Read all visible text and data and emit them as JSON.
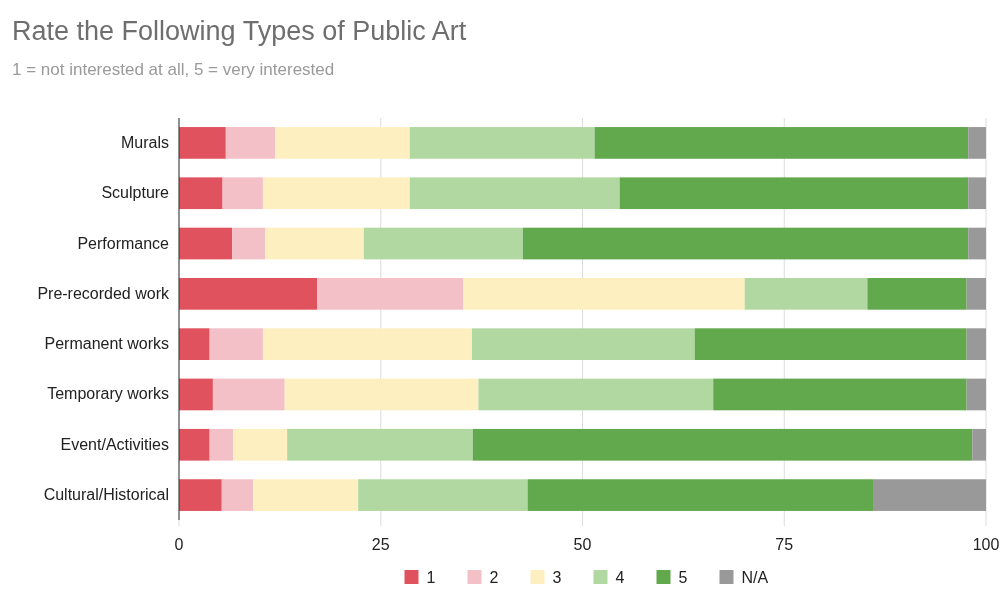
{
  "chart_data": {
    "type": "bar",
    "orientation": "horizontal",
    "stacked": true,
    "title": "Rate the Following Types of Public Art",
    "subtitle": "1 = not interested at all, 5 = very interested",
    "categories": [
      "Murals",
      "Sculpture",
      "Performance",
      "Pre-recorded work",
      "Permanent works",
      "Temporary works",
      "Event/Activities",
      "Cultural/Historical"
    ],
    "series": [
      {
        "name": "1",
        "color": "#e0525e",
        "values": [
          5.8,
          5.4,
          6.6,
          17.1,
          3.8,
          4.2,
          3.8,
          5.3
        ]
      },
      {
        "name": "2",
        "color": "#f4c0c8",
        "values": [
          6.1,
          5.0,
          4.1,
          18.1,
          6.6,
          8.9,
          2.9,
          3.9
        ]
      },
      {
        "name": "3",
        "color": "#fdefc0",
        "values": [
          16.7,
          18.2,
          12.2,
          34.9,
          25.9,
          24.0,
          6.7,
          13.0
        ]
      },
      {
        "name": "4",
        "color": "#b2d8a2",
        "values": [
          22.9,
          26.0,
          19.7,
          15.2,
          27.6,
          29.1,
          23.0,
          21.0
        ]
      },
      {
        "name": "5",
        "color": "#62a84c",
        "values": [
          46.3,
          43.2,
          55.2,
          12.3,
          33.7,
          31.4,
          61.9,
          42.8
        ]
      },
      {
        "name": "N/A",
        "color": "#999999",
        "values": [
          2.2,
          2.2,
          2.2,
          2.4,
          2.4,
          2.4,
          1.7,
          14.0
        ]
      }
    ],
    "xlim": [
      0,
      100
    ],
    "xticks": [
      0,
      25,
      50,
      75,
      100
    ],
    "grid": "x",
    "legend": "bottom"
  }
}
